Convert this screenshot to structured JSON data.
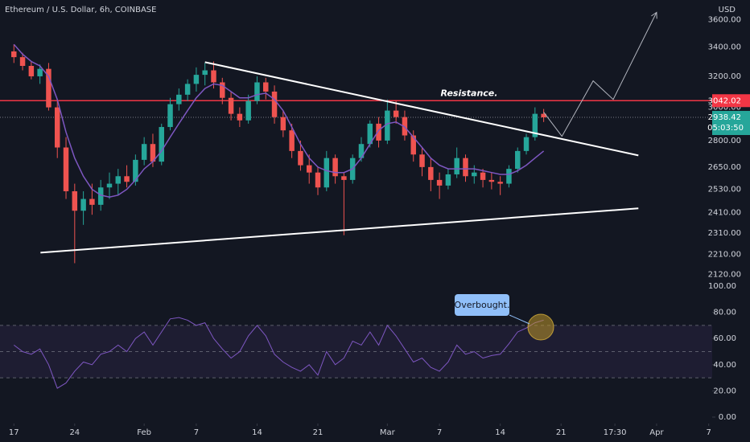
{
  "chart_data": {
    "type": "candlestick",
    "title": "Ethereum / U.S. Dollar, 6h, COINBASE",
    "currency": "USD",
    "log_scale": true,
    "up_color": "#26a69a",
    "down_color": "#ef5350",
    "ohlc": [
      [
        3370,
        3420,
        3290,
        3330
      ],
      [
        3330,
        3360,
        3240,
        3270
      ],
      [
        3270,
        3300,
        3180,
        3200
      ],
      [
        3200,
        3280,
        3150,
        3250
      ],
      [
        3250,
        3290,
        2980,
        3000
      ],
      [
        3000,
        3040,
        2700,
        2760
      ],
      [
        2760,
        2820,
        2480,
        2520
      ],
      [
        2520,
        2560,
        2170,
        2420
      ],
      [
        2420,
        2520,
        2350,
        2480
      ],
      [
        2480,
        2560,
        2400,
        2450
      ],
      [
        2450,
        2580,
        2420,
        2540
      ],
      [
        2540,
        2620,
        2480,
        2560
      ],
      [
        2560,
        2640,
        2500,
        2600
      ],
      [
        2600,
        2660,
        2540,
        2570
      ],
      [
        2570,
        2720,
        2550,
        2690
      ],
      [
        2690,
        2820,
        2660,
        2780
      ],
      [
        2780,
        2840,
        2650,
        2680
      ],
      [
        2680,
        2900,
        2660,
        2880
      ],
      [
        2880,
        3060,
        2860,
        3020
      ],
      [
        3020,
        3120,
        2980,
        3080
      ],
      [
        3080,
        3180,
        3040,
        3150
      ],
      [
        3150,
        3260,
        3100,
        3210
      ],
      [
        3210,
        3290,
        3140,
        3240
      ],
      [
        3240,
        3300,
        3120,
        3160
      ],
      [
        3160,
        3190,
        3020,
        3060
      ],
      [
        3060,
        3100,
        2920,
        2960
      ],
      [
        2960,
        3000,
        2880,
        2920
      ],
      [
        2920,
        3080,
        2900,
        3040
      ],
      [
        3040,
        3200,
        3020,
        3160
      ],
      [
        3160,
        3190,
        3050,
        3100
      ],
      [
        3100,
        3140,
        2900,
        2940
      ],
      [
        2940,
        2980,
        2820,
        2860
      ],
      [
        2860,
        2900,
        2700,
        2740
      ],
      [
        2740,
        2800,
        2630,
        2660
      ],
      [
        2660,
        2720,
        2560,
        2620
      ],
      [
        2620,
        2650,
        2500,
        2540
      ],
      [
        2540,
        2740,
        2520,
        2700
      ],
      [
        2700,
        2720,
        2560,
        2600
      ],
      [
        2600,
        2620,
        2300,
        2580
      ],
      [
        2580,
        2720,
        2560,
        2700
      ],
      [
        2700,
        2820,
        2680,
        2780
      ],
      [
        2780,
        2920,
        2760,
        2900
      ],
      [
        2900,
        2940,
        2760,
        2800
      ],
      [
        2800,
        3050,
        2780,
        2980
      ],
      [
        2980,
        3040,
        2900,
        2940
      ],
      [
        2940,
        2980,
        2800,
        2830
      ],
      [
        2830,
        2860,
        2680,
        2720
      ],
      [
        2720,
        2760,
        2600,
        2650
      ],
      [
        2650,
        2700,
        2520,
        2580
      ],
      [
        2580,
        2620,
        2480,
        2550
      ],
      [
        2550,
        2640,
        2530,
        2610
      ],
      [
        2610,
        2760,
        2590,
        2700
      ],
      [
        2700,
        2720,
        2570,
        2600
      ],
      [
        2600,
        2660,
        2560,
        2620
      ],
      [
        2620,
        2640,
        2540,
        2580
      ],
      [
        2580,
        2620,
        2530,
        2570
      ],
      [
        2570,
        2600,
        2500,
        2560
      ],
      [
        2560,
        2660,
        2540,
        2640
      ],
      [
        2640,
        2760,
        2620,
        2740
      ],
      [
        2740,
        2840,
        2720,
        2820
      ],
      [
        2820,
        3000,
        2800,
        2960
      ],
      [
        2960,
        2990,
        2910,
        2938.42
      ]
    ],
    "ma": {
      "color": "#7e57c2",
      "values": [
        3420,
        3350,
        3300,
        3270,
        3200,
        3050,
        2850,
        2700,
        2600,
        2530,
        2500,
        2490,
        2500,
        2530,
        2580,
        2640,
        2680,
        2740,
        2820,
        2900,
        2980,
        3060,
        3120,
        3150,
        3140,
        3100,
        3060,
        3060,
        3080,
        3090,
        3050,
        2980,
        2880,
        2780,
        2700,
        2650,
        2630,
        2620,
        2620,
        2640,
        2700,
        2780,
        2860,
        2900,
        2910,
        2880,
        2820,
        2760,
        2700,
        2660,
        2640,
        2640,
        2640,
        2640,
        2630,
        2620,
        2610,
        2610,
        2630,
        2660,
        2700,
        2740
      ]
    },
    "xlim": [
      -1.6,
      80.4
    ],
    "ylim": [
      2090,
      3750
    ],
    "yticks": [
      {
        "value": 3600,
        "label": "3600.00"
      },
      {
        "value": 3400,
        "label": "3400.00"
      },
      {
        "value": 3200,
        "label": "3200.00"
      },
      {
        "value": 3000,
        "label": "3000.00"
      },
      {
        "value": 2800,
        "label": "2800.00"
      },
      {
        "value": 2650,
        "label": "2650.00"
      },
      {
        "value": 2530,
        "label": "2530.00"
      },
      {
        "value": 2410,
        "label": "2410.00"
      },
      {
        "value": 2310,
        "label": "2310.00"
      },
      {
        "value": 2210,
        "label": "2210.00"
      },
      {
        "value": 2120,
        "label": "2120.00"
      }
    ],
    "xticks": [
      {
        "value": 0,
        "label": "17"
      },
      {
        "value": 7,
        "label": "24"
      },
      {
        "value": 15,
        "label": "Feb"
      },
      {
        "value": 21,
        "label": "7"
      },
      {
        "value": 28,
        "label": "14"
      },
      {
        "value": 35,
        "label": "21"
      },
      {
        "value": 43,
        "label": "Mar"
      },
      {
        "value": 49,
        "label": "7"
      },
      {
        "value": 56,
        "label": "14"
      },
      {
        "value": 63,
        "label": "21"
      },
      {
        "value": 69.2,
        "label": "17:30"
      },
      {
        "value": 74,
        "label": "Apr"
      },
      {
        "value": 80,
        "label": "7"
      }
    ],
    "resistance": {
      "label": "Resistance.",
      "value": 3042.02,
      "color": "#f23645"
    },
    "countdown": "05:03:50",
    "trendlines": [
      {
        "color": "#ffffff",
        "points": [
          [
            22.0,
            3295
          ],
          [
            71.9,
            2715
          ]
        ]
      },
      {
        "color": "#ffffff",
        "points": [
          [
            3.06,
            2218
          ],
          [
            71.9,
            2432
          ]
        ]
      },
      {
        "color": "#b2b5be",
        "points": [
          [
            61.0,
            2970
          ],
          [
            63.1,
            2825
          ],
          [
            66.7,
            3170
          ],
          [
            69.0,
            3050
          ],
          [
            74.0,
            3655
          ]
        ]
      }
    ],
    "rsi": {
      "color": "#7e57c2",
      "values": [
        55,
        50,
        48,
        52,
        40,
        22,
        26,
        35,
        42,
        40,
        48,
        50,
        55,
        50,
        60,
        65,
        55,
        65,
        75,
        76,
        74,
        70,
        72,
        60,
        52,
        45,
        50,
        62,
        70,
        62,
        48,
        42,
        38,
        35,
        40,
        32,
        50,
        40,
        45,
        58,
        55,
        65,
        55,
        70,
        62,
        52,
        42,
        45,
        38,
        35,
        42,
        55,
        48,
        50,
        45,
        47,
        48,
        56,
        65,
        68,
        72,
        74
      ],
      "ylim": [
        0,
        100
      ],
      "levels": [
        70,
        50,
        30
      ],
      "yticks": [
        {
          "value": 100,
          "label": "100.00"
        },
        {
          "value": 80,
          "label": "80.00"
        },
        {
          "value": 60,
          "label": "60.00"
        },
        {
          "value": 40,
          "label": "40.00"
        },
        {
          "value": 20,
          "label": "20.00"
        },
        {
          "value": 0,
          "label": "0.00"
        }
      ],
      "callout": "Overbought."
    }
  }
}
